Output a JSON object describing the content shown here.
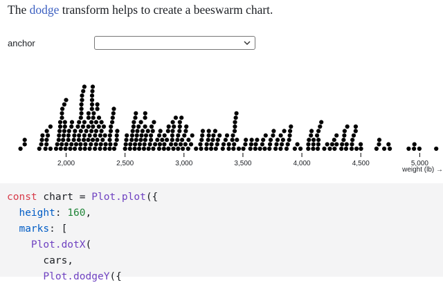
{
  "intro": {
    "before": "The ",
    "link": "dodge",
    "after": " transform helps to create a beeswarm chart."
  },
  "control": {
    "label": "anchor",
    "selected": ""
  },
  "colors": {
    "link": "#3b5fc0",
    "dot": "#000000",
    "keyword": "#d73a49",
    "function": "#6f42c1",
    "property": "#005cc5",
    "number": "#22863a",
    "code_bg": "#f4f4f5"
  },
  "chart_data": {
    "type": "scatter",
    "title": "",
    "xlabel": "weight (lb) →",
    "ylabel": "",
    "xlim": [
      1613,
      5140
    ],
    "xticks": [
      2000,
      2500,
      3000,
      3500,
      4000,
      4500,
      5000
    ],
    "xtick_labels": [
      "2,000",
      "2,500",
      "3,000",
      "3,500",
      "4,000",
      "4,500",
      "5,000"
    ],
    "grid": false,
    "legend": "none",
    "series": [
      {
        "values": [
          1613,
          1649,
          1649,
          1773,
          1789,
          1795,
          1800,
          1825,
          1834,
          1835,
          1836,
          1845,
          1867,
          1867,
          1915,
          1925,
          1937,
          1940,
          1945,
          1950,
          1950,
          1955,
          1963,
          1965,
          1965,
          1968,
          1975,
          1980,
          1985,
          1985,
          1990,
          1990,
          1995,
          2000,
          2003,
          2019,
          2020,
          2025,
          2035,
          2045,
          2045,
          2050,
          2065,
          2070,
          2074,
          2075,
          2085,
          2100,
          2108,
          2110,
          2110,
          2120,
          2123,
          2125,
          2125,
          2130,
          2130,
          2130,
          2135,
          2135,
          2144,
          2145,
          2150,
          2155,
          2155,
          2155,
          2160,
          2164,
          2171,
          2188,
          2189,
          2190,
          2190,
          2200,
          2200,
          2210,
          2215,
          2215,
          2219,
          2220,
          2220,
          2220,
          2223,
          2226,
          2226,
          2228,
          2230,
          2234,
          2245,
          2246,
          2254,
          2255,
          2255,
          2264,
          2265,
          2265,
          2278,
          2279,
          2288,
          2290,
          2295,
          2300,
          2300,
          2310,
          2320,
          2330,
          2330,
          2335,
          2370,
          2370,
          2372,
          2375,
          2379,
          2380,
          2391,
          2395,
          2401,
          2405,
          2408,
          2420,
          2430,
          2430,
          2434,
          2500,
          2506,
          2511,
          2515,
          2542,
          2545,
          2556,
          2560,
          2565,
          2572,
          2575,
          2582,
          2585,
          2587,
          2592,
          2595,
          2600,
          2605,
          2615,
          2620,
          2625,
          2634,
          2635,
          2640,
          2648,
          2660,
          2665,
          2670,
          2670,
          2671,
          2672,
          2678,
          2694,
          2700,
          2711,
          2720,
          2720,
          2725,
          2735,
          2740,
          2745,
          2755,
          2774,
          2789,
          2790,
          2795,
          2800,
          2815,
          2830,
          2833,
          2835,
          2855,
          2865,
          2868,
          2870,
          2890,
          2900,
          2901,
          2904,
          2905,
          2910,
          2914,
          2930,
          2930,
          2945,
          2950,
          2950,
          2962,
          2965,
          2965,
          2972,
          2979,
          2984,
          2990,
          3003,
          3012,
          3015,
          3020,
          3035,
          3039,
          3060,
          3070,
          3102,
          3139,
          3145,
          3150,
          3155,
          3160,
          3190,
          3193,
          3205,
          3210,
          3211,
          3230,
          3233,
          3245,
          3250,
          3265,
          3270,
          3282,
          3288,
          3302,
          3329,
          3336,
          3353,
          3365,
          3380,
          3381,
          3410,
          3415,
          3420,
          3425,
          3430,
          3432,
          3433,
          3439,
          3445,
          3449,
          3465,
          3504,
          3520,
          3525,
          3563,
          3570,
          3574,
          3605,
          3609,
          3620,
          3645,
          3664,
          3672,
          3685,
          3693,
          3725,
          3730,
          3735,
          3755,
          3761,
          3777,
          3785,
          3794,
          3820,
          3821,
          3830,
          3840,
          3850,
          3870,
          3880,
          3892,
          3897,
          3900,
          3907,
          3940,
          3962,
          3988,
          4054,
          4055,
          4060,
          4077,
          4082,
          4096,
          4098,
          4100,
          4129,
          4135,
          4140,
          4141,
          4141,
          4154,
          4165,
          4190,
          4215,
          4237,
          4257,
          4274,
          4278,
          4294,
          4295,
          4335,
          4341,
          4354,
          4360,
          4363,
          4375,
          4380,
          4385,
          4422,
          4425,
          4429,
          4440,
          4456,
          4457,
          4464,
          4499,
          4502,
          4633,
          4654,
          4657,
          4699,
          4735,
          4746,
          4906,
          4951,
          4955,
          4997,
          5140
        ]
      }
    ]
  },
  "code": {
    "lines": [
      [
        [
          "kw",
          "const"
        ],
        [
          "plain",
          " chart = "
        ],
        [
          "fn",
          "Plot.plot"
        ],
        [
          "plain",
          "({"
        ]
      ],
      [
        [
          "plain",
          "  "
        ],
        [
          "prop",
          "height"
        ],
        [
          "plain",
          ": "
        ],
        [
          "num",
          "160"
        ],
        [
          "plain",
          ","
        ]
      ],
      [
        [
          "plain",
          "  "
        ],
        [
          "prop",
          "marks"
        ],
        [
          "plain",
          ": ["
        ]
      ],
      [
        [
          "plain",
          "    "
        ],
        [
          "fn",
          "Plot.dotX"
        ],
        [
          "plain",
          "("
        ]
      ],
      [
        [
          "plain",
          "      cars,"
        ]
      ],
      [
        [
          "plain",
          "      "
        ],
        [
          "fn",
          "Plot.dodgeY"
        ],
        [
          "plain",
          "({"
        ]
      ]
    ]
  }
}
